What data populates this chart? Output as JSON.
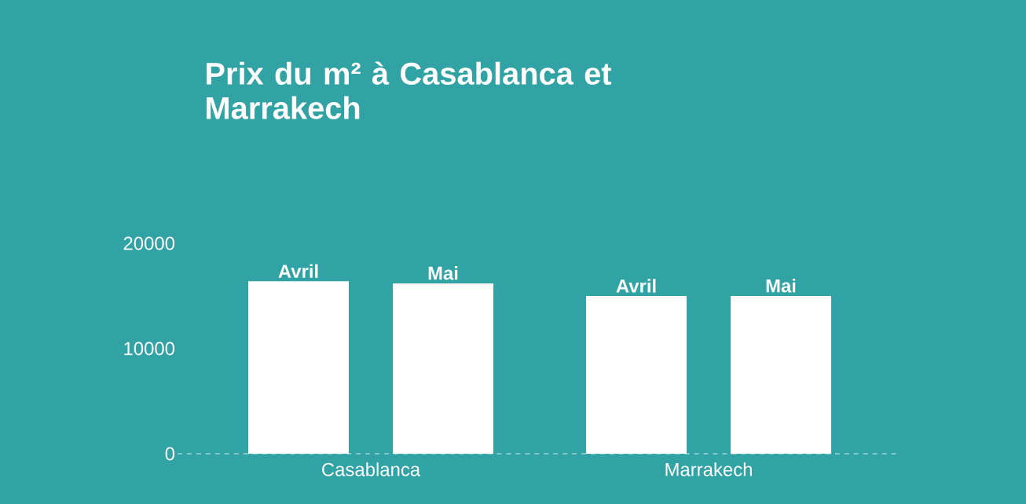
{
  "chart_data": {
    "type": "bar",
    "title": "Prix du m² à Casablanca et Marrakech",
    "categories": [
      "Casablanca",
      "Marrakech"
    ],
    "series": [
      {
        "name": "Avril",
        "color": "#ffffff",
        "values": [
          16400,
          15000
        ]
      },
      {
        "name": "Mai",
        "color": "#ffffff",
        "values": [
          16200,
          15000
        ]
      }
    ],
    "ylim": [
      0,
      20000
    ],
    "yticks": [
      0,
      10000,
      20000
    ],
    "grid": false,
    "legend": false
  }
}
